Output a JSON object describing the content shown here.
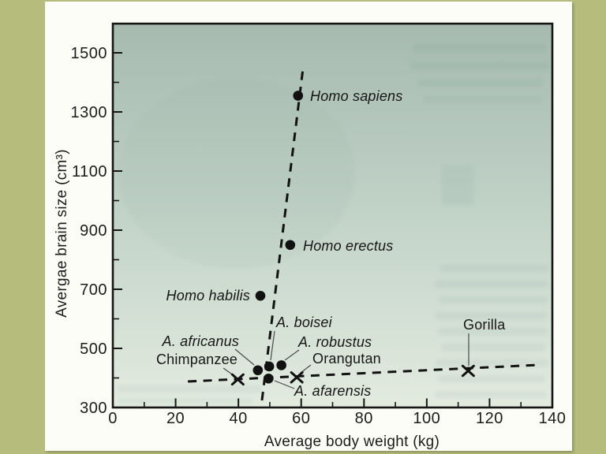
{
  "figure": {
    "background_color": "#b6bd7c",
    "page_color": "#fdfdf8",
    "plot_bg_top": "#a6bab0",
    "plot_bg_mid": "#c2d3c8",
    "plot_bg_bottom": "#e3ebdf",
    "axis_color": "#151515",
    "marker_color": "#111111"
  },
  "chart_data": {
    "type": "scatter",
    "title": "",
    "xlabel": "Average body weight (kg)",
    "ylabel": "Avergae brain size (cm³)",
    "xlim": [
      0,
      140
    ],
    "ylim": [
      300,
      1600
    ],
    "x_ticks": [
      0,
      20,
      40,
      60,
      80,
      100,
      120,
      140
    ],
    "x_minor_ticks": [
      10,
      30,
      50,
      70,
      90,
      110,
      130
    ],
    "y_ticks": [
      300,
      500,
      700,
      900,
      1100,
      1300,
      1500
    ],
    "y_minor_ticks": [
      400,
      600,
      800,
      1000,
      1200,
      1400
    ],
    "grid": false,
    "legend": false,
    "points": [
      {
        "id": "homo_sapiens",
        "label": "Homo sapiens",
        "x": 59,
        "y": 1355,
        "marker": "dot",
        "italic": true
      },
      {
        "id": "homo_erectus",
        "label": "Homo erectus",
        "x": 56.5,
        "y": 850,
        "marker": "dot",
        "italic": true
      },
      {
        "id": "homo_habilis",
        "label": "Homo habilis",
        "x": 47,
        "y": 678,
        "marker": "dot",
        "italic": true
      },
      {
        "id": "a_boisei",
        "label": "A. boisei",
        "x": 49.8,
        "y": 439,
        "marker": "dot",
        "italic": true
      },
      {
        "id": "a_robustus",
        "label": "A. robustus",
        "x": 53.7,
        "y": 443,
        "marker": "dot",
        "italic": true
      },
      {
        "id": "a_africanus",
        "label": "A. africanus",
        "x": 46.2,
        "y": 426,
        "marker": "dot",
        "italic": true
      },
      {
        "id": "a_afarensis",
        "label": "A. afarensis",
        "x": 49.6,
        "y": 398,
        "marker": "dot",
        "italic": true
      },
      {
        "id": "chimpanzee",
        "label": "Chimpanzee",
        "x": 39.8,
        "y": 395,
        "marker": "cross",
        "italic": false
      },
      {
        "id": "orangutan",
        "label": "Orangutan",
        "x": 58.6,
        "y": 402,
        "marker": "cross",
        "italic": false
      },
      {
        "id": "gorilla",
        "label": "Gorilla",
        "x": 113.2,
        "y": 424,
        "marker": "cross",
        "italic": false
      }
    ],
    "trend_lines": [
      {
        "id": "hominid_trend",
        "style": "dashed",
        "from": [
          47.5,
          324
        ],
        "to": [
          60.6,
          1449
        ]
      },
      {
        "id": "ape_trend",
        "style": "dashed",
        "from": [
          23.9,
          388
        ],
        "to": [
          135.7,
          444
        ]
      }
    ]
  }
}
